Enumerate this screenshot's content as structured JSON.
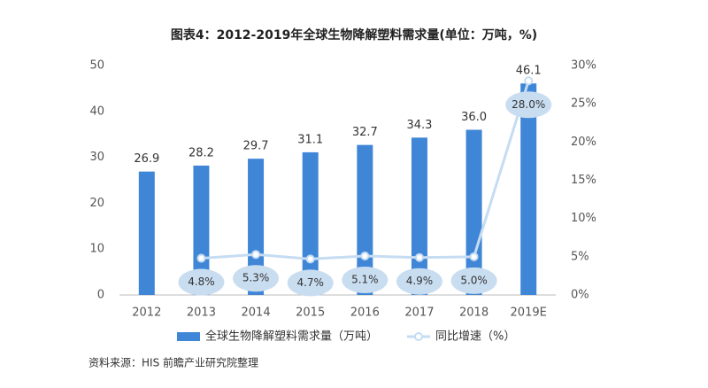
{
  "chart_data": {
    "type": "bar_line",
    "title": "图表4：2012-2019年全球生物降解塑料需求量(单位：万吨，%)",
    "categories": [
      "2012",
      "2013",
      "2014",
      "2015",
      "2016",
      "2017",
      "2018",
      "2019E"
    ],
    "series": [
      {
        "name": "全球生物降解塑料需求量（万吨）",
        "type": "bar",
        "color": "#3f86d6",
        "values": [
          26.9,
          28.2,
          29.7,
          31.1,
          32.7,
          34.3,
          36.0,
          46.1
        ],
        "value_labels": [
          "26.9",
          "28.2",
          "29.7",
          "31.1",
          "32.7",
          "34.3",
          "36.0",
          "46.1"
        ]
      },
      {
        "name": "同比增速（%）",
        "type": "line",
        "axis": "y2",
        "color": "#c5dcf2",
        "values": [
          null,
          4.8,
          5.3,
          4.7,
          5.1,
          4.9,
          5.0,
          28.0
        ],
        "value_labels": [
          null,
          "4.8%",
          "5.3%",
          "4.7%",
          "5.1%",
          "4.9%",
          "5.0%",
          "28.0%"
        ]
      }
    ],
    "ylim": [
      0,
      50
    ],
    "yticks": [
      0,
      10,
      20,
      30,
      40,
      50
    ],
    "y2lim": [
      0,
      30
    ],
    "y2ticks": [
      {
        "value": 0,
        "label": "0%"
      },
      {
        "value": 5,
        "label": "5%"
      },
      {
        "value": 10,
        "label": "10%"
      },
      {
        "value": 15,
        "label": "15%"
      },
      {
        "value": 20,
        "label": "20%"
      },
      {
        "value": 25,
        "label": "25%"
      },
      {
        "value": 30,
        "label": "30%"
      }
    ],
    "legend": "bottom",
    "source": "资料来源：HIS 前瞻产业研究院整理"
  }
}
